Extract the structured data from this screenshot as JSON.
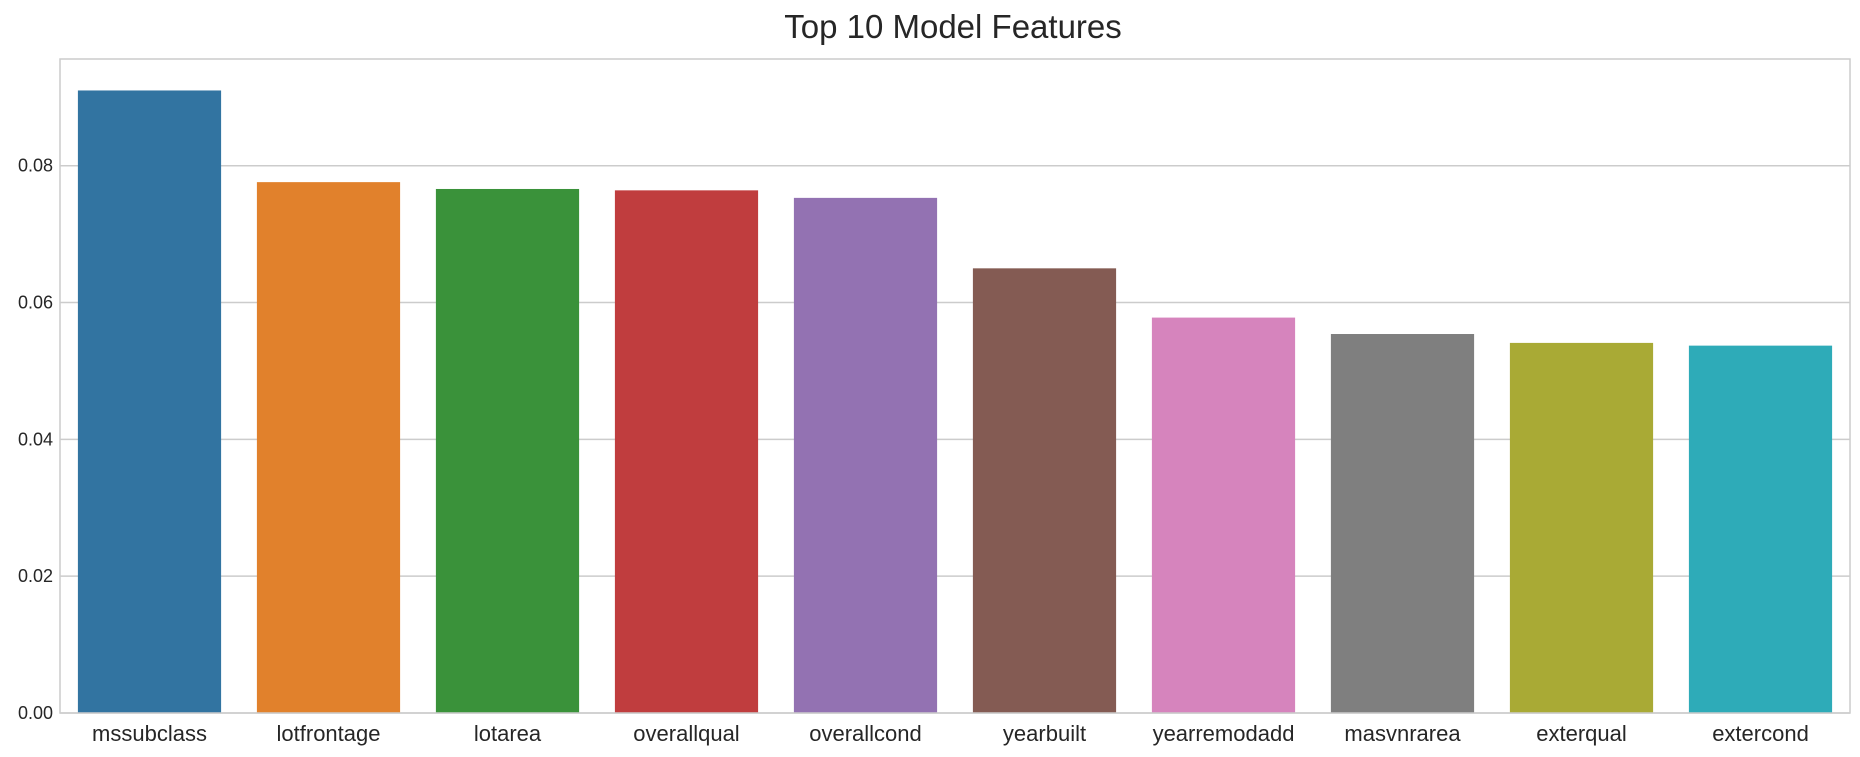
{
  "chart_data": {
    "type": "bar",
    "title": "Top 10 Model Features",
    "xlabel": "",
    "ylabel": "",
    "categories": [
      "mssubclass",
      "lotfrontage",
      "lotarea",
      "overallqual",
      "overallcond",
      "yearbuilt",
      "yearremodadd",
      "masvnrarea",
      "exterqual",
      "extercond"
    ],
    "values": [
      0.091,
      0.0776,
      0.0766,
      0.0764,
      0.0753,
      0.065,
      0.0578,
      0.0554,
      0.0541,
      0.0537
    ],
    "colors": [
      "#3274a1",
      "#e1812c",
      "#3a923a",
      "#c03d3e",
      "#9372b2",
      "#845b53",
      "#d684bd",
      "#7f7f7f",
      "#a9aa35",
      "#2eabb8"
    ],
    "ylim": [
      0,
      0.0956
    ],
    "yticks": [
      0.0,
      0.02,
      0.04,
      0.06,
      0.08
    ],
    "ytick_labels": [
      "0.00",
      "0.02",
      "0.04",
      "0.06",
      "0.08"
    ],
    "grid": true,
    "grid_axis": "y",
    "grid_color": "#cccccc",
    "spine_color": "#cccccc",
    "legend": "none"
  }
}
